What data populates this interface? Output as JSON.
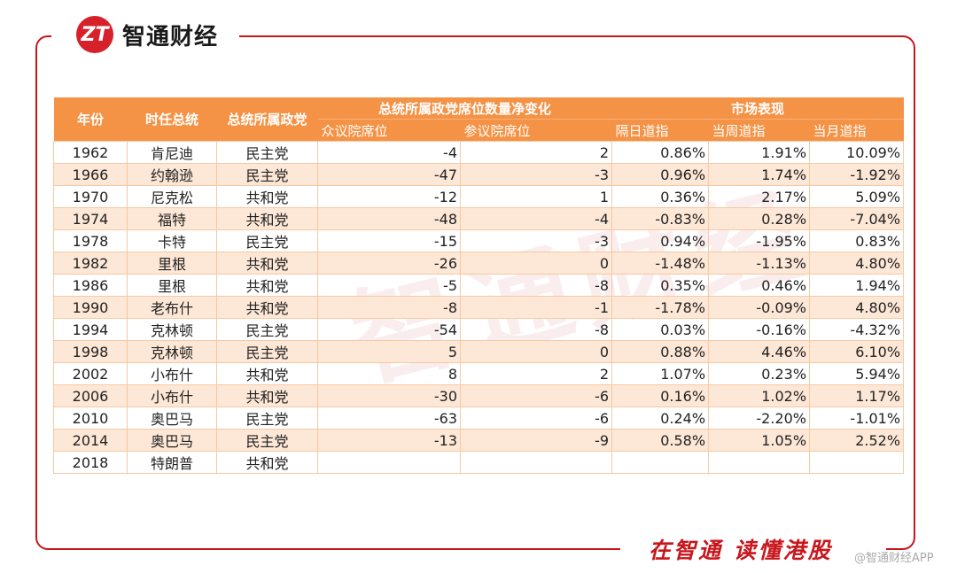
{
  "brand": {
    "logo_text": "ZT",
    "name": "智通财经"
  },
  "footer": {
    "slogan": "在智通 读懂港股",
    "source": "@智通财经APP"
  },
  "watermark": "智通财经",
  "table": {
    "headers": {
      "year": "年份",
      "president": "时任总统",
      "party": "总统所属政党",
      "seat_change_group": "总统所属政党席位数量净变化",
      "market_group": "市场表现",
      "house": "众议院席位",
      "senate": "参议院席位",
      "next_day_dow": "隔日道指",
      "week_dow": "当周道指",
      "month_dow": "当月道指"
    },
    "rows": [
      {
        "year": "1962",
        "president": "肯尼迪",
        "party": "民主党",
        "house": "-4",
        "senate": "2",
        "day": "0.86%",
        "week": "1.91%",
        "month": "10.09%"
      },
      {
        "year": "1966",
        "president": "约翰逊",
        "party": "民主党",
        "house": "-47",
        "senate": "-3",
        "day": "0.96%",
        "week": "1.74%",
        "month": "-1.92%"
      },
      {
        "year": "1970",
        "president": "尼克松",
        "party": "共和党",
        "house": "-12",
        "senate": "1",
        "day": "0.36%",
        "week": "2.17%",
        "month": "5.09%"
      },
      {
        "year": "1974",
        "president": "福特",
        "party": "共和党",
        "house": "-48",
        "senate": "-4",
        "day": "-0.83%",
        "week": "0.28%",
        "month": "-7.04%"
      },
      {
        "year": "1978",
        "president": "卡特",
        "party": "民主党",
        "house": "-15",
        "senate": "-3",
        "day": "0.94%",
        "week": "-1.95%",
        "month": "0.83%"
      },
      {
        "year": "1982",
        "president": "里根",
        "party": "共和党",
        "house": "-26",
        "senate": "0",
        "day": "-1.48%",
        "week": "-1.13%",
        "month": "4.80%"
      },
      {
        "year": "1986",
        "president": "里根",
        "party": "共和党",
        "house": "-5",
        "senate": "-8",
        "day": "0.35%",
        "week": "0.46%",
        "month": "1.94%"
      },
      {
        "year": "1990",
        "president": "老布什",
        "party": "共和党",
        "house": "-8",
        "senate": "-1",
        "day": "-1.78%",
        "week": "-0.09%",
        "month": "4.80%"
      },
      {
        "year": "1994",
        "president": "克林顿",
        "party": "民主党",
        "house": "-54",
        "senate": "-8",
        "day": "0.03%",
        "week": "-0.16%",
        "month": "-4.32%"
      },
      {
        "year": "1998",
        "president": "克林顿",
        "party": "民主党",
        "house": "5",
        "senate": "0",
        "day": "0.88%",
        "week": "4.46%",
        "month": "6.10%"
      },
      {
        "year": "2002",
        "president": "小布什",
        "party": "共和党",
        "house": "8",
        "senate": "2",
        "day": "1.07%",
        "week": "0.23%",
        "month": "5.94%"
      },
      {
        "year": "2006",
        "president": "小布什",
        "party": "共和党",
        "house": "-30",
        "senate": "-6",
        "day": "0.16%",
        "week": "1.02%",
        "month": "1.17%"
      },
      {
        "year": "2010",
        "president": "奥巴马",
        "party": "民主党",
        "house": "-63",
        "senate": "-6",
        "day": "0.24%",
        "week": "-2.20%",
        "month": "-1.01%"
      },
      {
        "year": "2014",
        "president": "奥巴马",
        "party": "民主党",
        "house": "-13",
        "senate": "-9",
        "day": "0.58%",
        "week": "1.05%",
        "month": "2.52%"
      },
      {
        "year": "2018",
        "president": "特朗普",
        "party": "共和党",
        "house": "",
        "senate": "",
        "day": "",
        "week": "",
        "month": ""
      }
    ]
  },
  "colors": {
    "accent_red": "#c8161d",
    "header_orange": "#f49245",
    "row_alt": "#fde7d6"
  }
}
